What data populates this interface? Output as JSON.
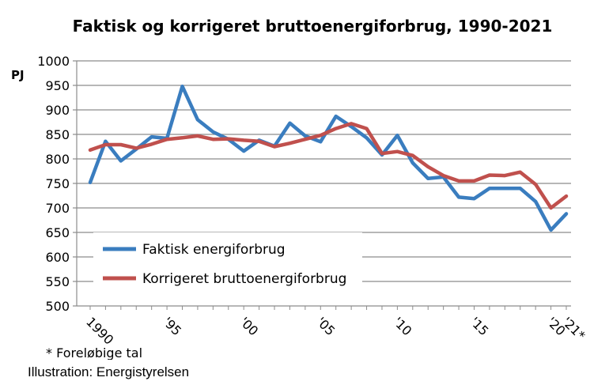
{
  "chart_data": {
    "type": "line",
    "title": "Faktisk og korrigeret bruttoenergiforbrug, 1990-2021",
    "ylabel": "PJ",
    "ylim": [
      500,
      1000
    ],
    "yticks": [
      500,
      550,
      600,
      650,
      700,
      750,
      800,
      850,
      900,
      950,
      1000
    ],
    "x": [
      1990,
      1991,
      1992,
      1993,
      1994,
      1995,
      1996,
      1997,
      1998,
      1999,
      2000,
      2001,
      2002,
      2003,
      2004,
      2005,
      2006,
      2007,
      2008,
      2009,
      2010,
      2011,
      2012,
      2013,
      2014,
      2015,
      2016,
      2017,
      2018,
      2019,
      2020,
      2021
    ],
    "xtick_labels": [
      {
        "x": 1990,
        "label": "1990"
      },
      {
        "x": 1995,
        "label": "'95"
      },
      {
        "x": 2000,
        "label": "'00"
      },
      {
        "x": 2005,
        "label": "'05"
      },
      {
        "x": 2010,
        "label": "'10"
      },
      {
        "x": 2015,
        "label": "'15"
      },
      {
        "x": 2020,
        "label": "'20"
      },
      {
        "x": 2021,
        "label": "'21*"
      }
    ],
    "series": [
      {
        "name": "Faktisk energiforbrug",
        "color": "#3a7dbf",
        "values": [
          752,
          836,
          796,
          820,
          845,
          842,
          948,
          880,
          855,
          840,
          816,
          838,
          826,
          873,
          847,
          835,
          887,
          866,
          843,
          808,
          848,
          792,
          760,
          763,
          722,
          719,
          740,
          740,
          740,
          713,
          655,
          688
        ]
      },
      {
        "name": "Korrigeret bruttoenergiforbrug",
        "color": "#c0504d",
        "values": [
          818,
          829,
          829,
          822,
          830,
          840,
          843,
          847,
          840,
          841,
          838,
          836,
          825,
          832,
          840,
          848,
          862,
          872,
          862,
          811,
          815,
          807,
          784,
          766,
          755,
          755,
          767,
          766,
          773,
          748,
          700,
          724
        ]
      }
    ],
    "grid": true,
    "legend_position": "lower-left (inside plot)",
    "footnote": "* Foreløbige tal"
  },
  "credit": "Illustration: Energistyrelsen"
}
